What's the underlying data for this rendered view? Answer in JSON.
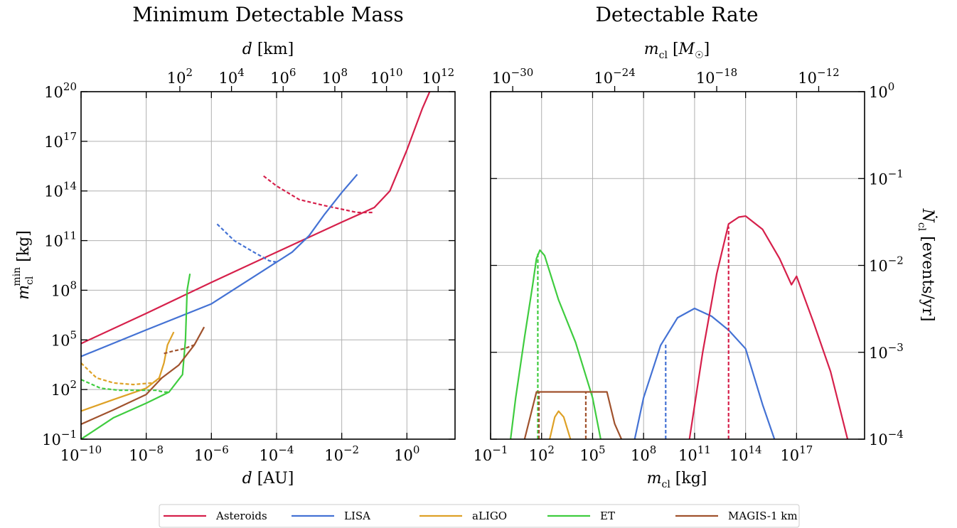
{
  "chart_data": [
    {
      "type": "line",
      "title": "Minimum Detectable Mass",
      "xlabel": "d [AU]",
      "ylabel": "m_cl^min [kg]",
      "top_xlabel": "d [km]",
      "xscale": "log",
      "yscale": "log",
      "xlim": [
        1e-10,
        30
      ],
      "ylim": [
        0.1,
        1e+20
      ],
      "top_xlim": [
        0.015,
        4500000000000.0
      ],
      "grid": true,
      "x_ticks": [
        {
          "exp": -10,
          "label": "10^-10"
        },
        {
          "exp": -8,
          "label": "10^-8"
        },
        {
          "exp": -6,
          "label": "10^-6"
        },
        {
          "exp": -4,
          "label": "10^-4"
        },
        {
          "exp": -2,
          "label": "10^-2"
        },
        {
          "exp": 0,
          "label": "10^0"
        }
      ],
      "y_ticks": [
        {
          "exp": -1,
          "label": "10^-1"
        },
        {
          "exp": 2,
          "label": "10^2"
        },
        {
          "exp": 5,
          "label": "10^5"
        },
        {
          "exp": 8,
          "label": "10^8"
        },
        {
          "exp": 11,
          "label": "10^11"
        },
        {
          "exp": 14,
          "label": "10^14"
        },
        {
          "exp": 17,
          "label": "10^17"
        },
        {
          "exp": 20,
          "label": "10^20"
        }
      ],
      "top_ticks": [
        {
          "exp": 2,
          "label": "10^2"
        },
        {
          "exp": 4,
          "label": "10^4"
        },
        {
          "exp": 6,
          "label": "10^6"
        },
        {
          "exp": 8,
          "label": "10^8"
        },
        {
          "exp": 10,
          "label": "10^10"
        },
        {
          "exp": 12,
          "label": "10^12"
        }
      ],
      "series": [
        {
          "name": "Asteroids",
          "style": "solid",
          "x": [
            1e-10,
            1e-08,
            1e-06,
            0.0001,
            0.01,
            0.1,
            0.3,
            1.0,
            3.0,
            5.0
          ],
          "y": [
            60000.0,
            4000000.0,
            300000000.0,
            20000000000.0,
            1300000000000.0,
            10000000000000.0,
            100000000000000.0,
            3e+16,
            1e+19,
            1e+20
          ]
        },
        {
          "name": "Asteroids",
          "style": "dashed",
          "x": [
            4e-05,
            0.0001,
            0.0005,
            0.003,
            0.03,
            0.1
          ],
          "y": [
            800000000000000.0,
            200000000000000.0,
            30000000000000.0,
            13000000000000.0,
            5000000000000.0,
            5000000000000.0
          ]
        },
        {
          "name": "LISA",
          "style": "solid",
          "x": [
            1e-10,
            1e-08,
            1e-06,
            0.0001,
            0.0001,
            0.0003,
            0.001,
            0.003,
            0.01,
            0.03
          ],
          "y": [
            10000.0,
            400000.0,
            15000000.0,
            5000000000.0,
            5000000000.0,
            20000000000.0,
            200000000000.0,
            4000000000000.0,
            80000000000000.0,
            1000000000000000.0
          ]
        },
        {
          "name": "LISA",
          "style": "dashed",
          "x": [
            1.5e-06,
            5e-06,
            2e-05,
            6e-05,
            0.0001
          ],
          "y": [
            1000000000000.0,
            100000000000.0,
            20000000000.0,
            6000000000.0,
            5000000000.0
          ]
        },
        {
          "name": "aLIGO",
          "style": "solid",
          "x": [
            1e-10,
            1e-09,
            1e-08,
            2.5e-08,
            3.5e-08,
            4.5e-08,
            7e-08
          ],
          "y": [
            5,
            25,
            120,
            500,
            4000,
            50000.0,
            300000.0
          ]
        },
        {
          "name": "aLIGO",
          "style": "dashed",
          "x": [
            1e-10,
            3e-10,
            1e-09,
            4e-09,
            1.5e-08,
            3e-08
          ],
          "y": [
            4000,
            500,
            250,
            200,
            250,
            500
          ]
        },
        {
          "name": "ET",
          "style": "solid",
          "x": [
            1e-10,
            1e-09,
            1e-08,
            5e-08,
            1.3e-07,
            1.6e-07,
            1.8e-07,
            2.2e-07
          ],
          "y": [
            0.1,
            2,
            15,
            70,
            800,
            100000.0,
            100000000.0,
            1000000000.0
          ]
        },
        {
          "name": "ET",
          "style": "dashed",
          "x": [
            1e-10,
            4e-10,
            1.5e-09,
            5e-09,
            2e-08,
            3.5e-08,
            5e-08
          ],
          "y": [
            400,
            120,
            90,
            90,
            90,
            70,
            70
          ]
        },
        {
          "name": "MAGIS-1 km",
          "style": "solid",
          "x": [
            1e-10,
            1e-09,
            1e-08,
            3e-08,
            1e-07,
            3e-07,
            6e-07
          ],
          "y": [
            0.8,
            6,
            50,
            500,
            3000.0,
            50000.0,
            600000.0
          ]
        },
        {
          "name": "MAGIS-1 km",
          "style": "dashed",
          "x": [
            3.5e-08,
            6e-08,
            1.5e-07,
            3e-07
          ],
          "y": [
            15000.0,
            20000.0,
            30000.0,
            50000.0
          ]
        }
      ]
    },
    {
      "type": "line",
      "title": "Detectable Rate",
      "xlabel": "m_cl [kg]",
      "ylabel": "N_cl [events/yr]",
      "top_xlabel": "m_cl [M_☉]",
      "xscale": "log",
      "yscale": "log",
      "xlim": [
        0.1,
        1e+21
      ],
      "ylim": [
        0.0001,
        1
      ],
      "top_xlim": [
        5e-32,
        5e-10
      ],
      "grid": true,
      "x_ticks": [
        {
          "exp": -1,
          "label": "10^-1"
        },
        {
          "exp": 2,
          "label": "10^2"
        },
        {
          "exp": 5,
          "label": "10^5"
        },
        {
          "exp": 8,
          "label": "10^8"
        },
        {
          "exp": 11,
          "label": "10^11"
        },
        {
          "exp": 14,
          "label": "10^14"
        },
        {
          "exp": 17,
          "label": "10^17"
        }
      ],
      "y_ticks": [
        {
          "exp": -4,
          "label": "10^-4"
        },
        {
          "exp": -3,
          "label": "10^-3"
        },
        {
          "exp": -2,
          "label": "10^-2"
        },
        {
          "exp": -1,
          "label": "10^-1"
        },
        {
          "exp": 0,
          "label": "10^0"
        }
      ],
      "top_ticks": [
        {
          "exp": -30,
          "label": "10^-30"
        },
        {
          "exp": -24,
          "label": "10^-24"
        },
        {
          "exp": -18,
          "label": "10^-18"
        },
        {
          "exp": -12,
          "label": "10^-12"
        }
      ],
      "series": [
        {
          "name": "ET",
          "style": "solid",
          "x": [
            1.5,
            3,
            10,
            30,
            50,
            80,
            150,
            1000,
            10000,
            100000,
            300000
          ],
          "y": [
            0.0001,
            0.0003,
            0.0015,
            0.006,
            0.012,
            0.015,
            0.013,
            0.004,
            0.0013,
            0.0003,
            0.0001
          ]
        },
        {
          "name": "ET",
          "style": "dashed",
          "x": [
            60,
            60
          ],
          "y": [
            0.0001,
            0.014
          ]
        },
        {
          "name": "MAGIS-1 km",
          "style": "solid",
          "x": [
            10,
            50,
            70,
            700000,
            2000000.0,
            5000000.0
          ],
          "y": [
            0.0001,
            0.00035,
            0.00035,
            0.00035,
            0.00015,
            0.0001
          ]
        },
        {
          "name": "MAGIS-1 km",
          "style": "dashed",
          "x": [
            70,
            70
          ],
          "y": [
            0.0001,
            0.00035
          ]
        },
        {
          "name": "MAGIS-1 km",
          "style": "dashed",
          "x": [
            40000,
            40000
          ],
          "y": [
            0.0001,
            0.00035
          ]
        },
        {
          "name": "aLIGO",
          "style": "solid",
          "x": [
            300,
            600,
            1000,
            2000,
            5000
          ],
          "y": [
            0.0001,
            0.00018,
            0.00021,
            0.00018,
            0.0001
          ]
        },
        {
          "name": "LISA",
          "style": "solid",
          "x": [
            30000000.0,
            100000000.0,
            1000000000.0,
            10000000000.0,
            100000000000.0,
            1000000000000.0,
            10000000000000.0,
            100000000000000.0,
            1000000000000000.0,
            5000000000000000.0
          ],
          "y": [
            0.0001,
            0.0003,
            0.0012,
            0.0025,
            0.0032,
            0.0026,
            0.0018,
            0.0011,
            0.00025,
            0.0001
          ]
        },
        {
          "name": "LISA",
          "style": "dashed",
          "x": [
            2000000000.0,
            2000000000.0
          ],
          "y": [
            0.0001,
            0.0013
          ]
        },
        {
          "name": "Asteroids",
          "style": "solid",
          "x": [
            50000000000.0,
            300000000000.0,
            2000000000000.0,
            10000000000000.0,
            40000000000000.0,
            100000000000000.0,
            1000000000000000.0,
            1e+16,
            5e+16,
            1e+17,
            1e+18,
            1e+19,
            1e+20
          ],
          "y": [
            0.0001,
            0.001,
            0.008,
            0.03,
            0.036,
            0.037,
            0.026,
            0.012,
            0.006,
            0.0075,
            0.0022,
            0.0006,
            0.0001
          ]
        },
        {
          "name": "Asteroids",
          "style": "dashed",
          "x": [
            10000000000000.0,
            10000000000000.0
          ],
          "y": [
            0.0001,
            0.028
          ]
        }
      ]
    }
  ],
  "legend": {
    "placement": "bottom-center",
    "items": [
      {
        "name": "Asteroids",
        "color": "#d6204b"
      },
      {
        "name": "LISA",
        "color": "#4472d4"
      },
      {
        "name": "aLIGO",
        "color": "#dea126"
      },
      {
        "name": "ET",
        "color": "#3fcc3f"
      },
      {
        "name": "MAGIS-1 km",
        "color": "#a0522d"
      }
    ]
  }
}
